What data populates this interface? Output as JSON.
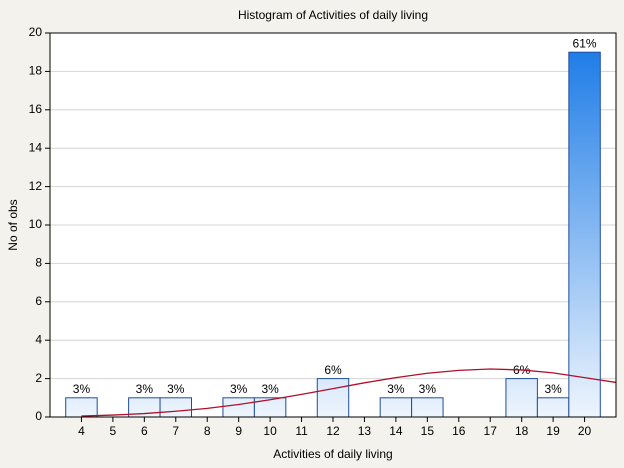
{
  "chart_data": {
    "type": "histogram",
    "title": "Histogram of Activities of daily living",
    "x_label": "Activities of daily living",
    "y_label": "No of obs",
    "bins": [
      3.5,
      4.5,
      5.5,
      6.5,
      7.5,
      8.5,
      9.5,
      10.5,
      11.5,
      12.5,
      13.5,
      14.5,
      15.5,
      16.5,
      17.5,
      18.5,
      19.5,
      20.5
    ],
    "values": [
      1,
      0,
      1,
      1,
      0,
      1,
      1,
      0,
      2,
      0,
      1,
      1,
      0,
      0,
      2,
      1,
      19
    ],
    "value_labels": [
      "3%",
      null,
      "3%",
      "3%",
      null,
      "3%",
      "3%",
      null,
      "6%",
      null,
      "3%",
      "3%",
      null,
      null,
      "6%",
      "3%",
      "61%"
    ],
    "colors": [
      "#eef5fd",
      "#1577e6"
    ],
    "edge_color": "#1f4d9c",
    "xlim": [
      3,
      21
    ],
    "xticks": [
      4,
      5,
      6,
      7,
      8,
      9,
      10,
      11,
      12,
      13,
      14,
      15,
      16,
      17,
      18,
      19,
      20
    ],
    "ylim": [
      0,
      20
    ],
    "yticks": [
      0,
      2,
      4,
      6,
      8,
      10,
      12,
      14,
      16,
      18,
      20
    ],
    "grid": true,
    "fit_curve": {
      "color": "#b0102a",
      "x": [
        4,
        5,
        6,
        7,
        8,
        9,
        10,
        11,
        12,
        13,
        14,
        15,
        16,
        17,
        18,
        19,
        20,
        21
      ],
      "values": [
        0.05,
        0.1,
        0.18,
        0.3,
        0.45,
        0.65,
        0.9,
        1.18,
        1.48,
        1.78,
        2.05,
        2.28,
        2.43,
        2.5,
        2.45,
        2.3,
        2.05,
        1.8
      ]
    }
  }
}
